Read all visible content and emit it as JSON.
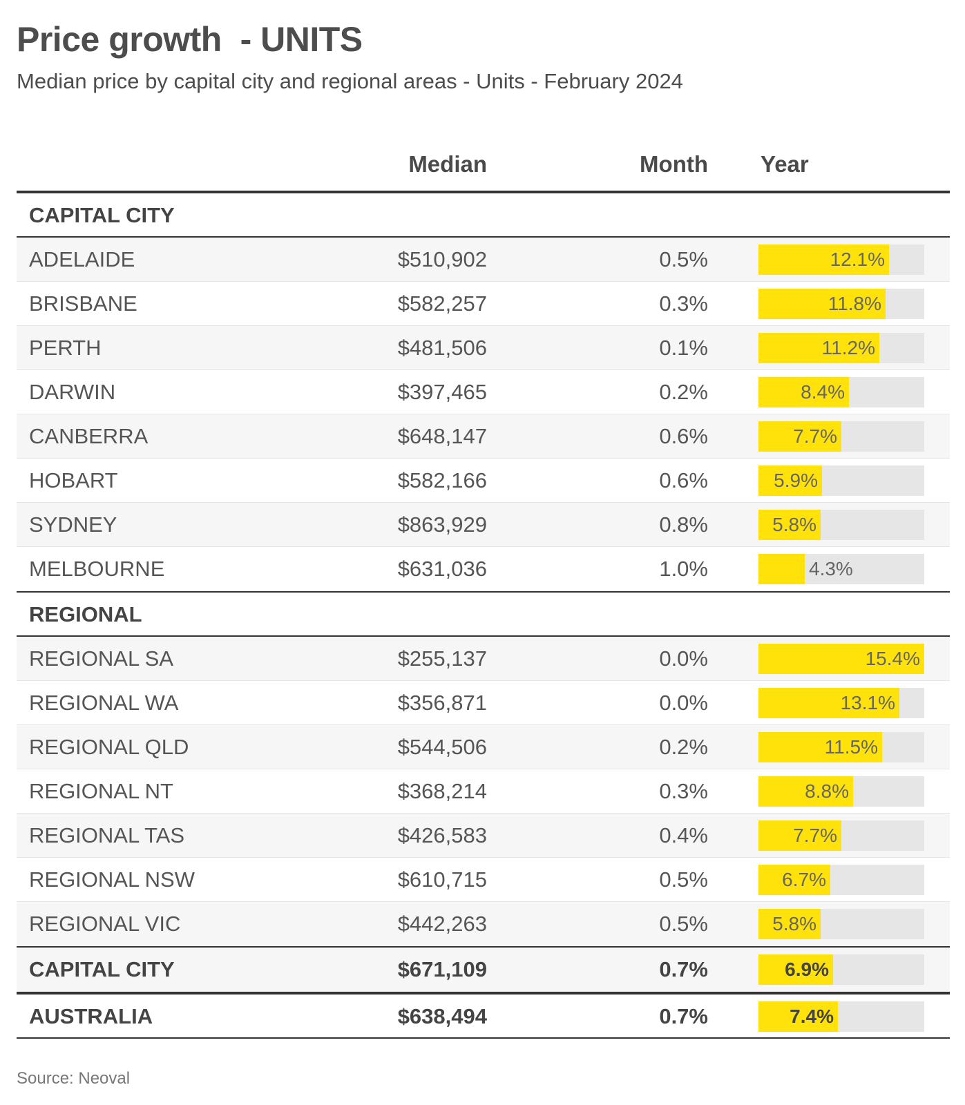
{
  "title": "Price growth  - UNITS",
  "subtitle": "Median price by capital city and regional areas - Units - February 2024",
  "columns": {
    "median": "Median",
    "month": "Month",
    "year": "Year"
  },
  "source": "Source: Neoval",
  "colors": {
    "bar": "#ffe20a",
    "track": "#e6e6e6",
    "text": "#4d4d4d"
  },
  "chart_data": {
    "type": "table",
    "title": "Price growth  - UNITS",
    "subtitle": "Median price by capital city and regional areas - Units - February 2024",
    "columns": [
      "Median",
      "Month",
      "Year"
    ],
    "year_bar_max": 15.4,
    "sections": [
      {
        "name": "CAPITAL CITY",
        "rows": [
          {
            "name": "ADELAIDE",
            "median": "$510,902",
            "month": "0.5%",
            "year": 12.1,
            "year_label": "12.1%"
          },
          {
            "name": "BRISBANE",
            "median": "$582,257",
            "month": "0.3%",
            "year": 11.8,
            "year_label": "11.8%"
          },
          {
            "name": "PERTH",
            "median": "$481,506",
            "month": "0.1%",
            "year": 11.2,
            "year_label": "11.2%"
          },
          {
            "name": "DARWIN",
            "median": "$397,465",
            "month": "0.2%",
            "year": 8.4,
            "year_label": "8.4%"
          },
          {
            "name": "CANBERRA",
            "median": "$648,147",
            "month": "0.6%",
            "year": 7.7,
            "year_label": "7.7%"
          },
          {
            "name": "HOBART",
            "median": "$582,166",
            "month": "0.6%",
            "year": 5.9,
            "year_label": "5.9%"
          },
          {
            "name": "SYDNEY",
            "median": "$863,929",
            "month": "0.8%",
            "year": 5.8,
            "year_label": "5.8%"
          },
          {
            "name": "MELBOURNE",
            "median": "$631,036",
            "month": "1.0%",
            "year": 4.3,
            "year_label": "4.3%"
          }
        ]
      },
      {
        "name": "REGIONAL",
        "rows": [
          {
            "name": "REGIONAL SA",
            "median": "$255,137",
            "month": "0.0%",
            "year": 15.4,
            "year_label": "15.4%"
          },
          {
            "name": "REGIONAL WA",
            "median": "$356,871",
            "month": "0.0%",
            "year": 13.1,
            "year_label": "13.1%"
          },
          {
            "name": "REGIONAL QLD",
            "median": "$544,506",
            "month": "0.2%",
            "year": 11.5,
            "year_label": "11.5%"
          },
          {
            "name": "REGIONAL NT",
            "median": "$368,214",
            "month": "0.3%",
            "year": 8.8,
            "year_label": "8.8%"
          },
          {
            "name": "REGIONAL TAS",
            "median": "$426,583",
            "month": "0.4%",
            "year": 7.7,
            "year_label": "7.7%"
          },
          {
            "name": "REGIONAL NSW",
            "median": "$610,715",
            "month": "0.5%",
            "year": 6.7,
            "year_label": "6.7%"
          },
          {
            "name": "REGIONAL VIC",
            "median": "$442,263",
            "month": "0.5%",
            "year": 5.8,
            "year_label": "5.8%"
          }
        ]
      }
    ],
    "totals": [
      {
        "name": "CAPITAL CITY",
        "median": "$671,109",
        "month": "0.7%",
        "year": 6.9,
        "year_label": "6.9%"
      },
      {
        "name": "AUSTRALIA",
        "median": "$638,494",
        "month": "0.7%",
        "year": 7.4,
        "year_label": "7.4%"
      }
    ]
  }
}
